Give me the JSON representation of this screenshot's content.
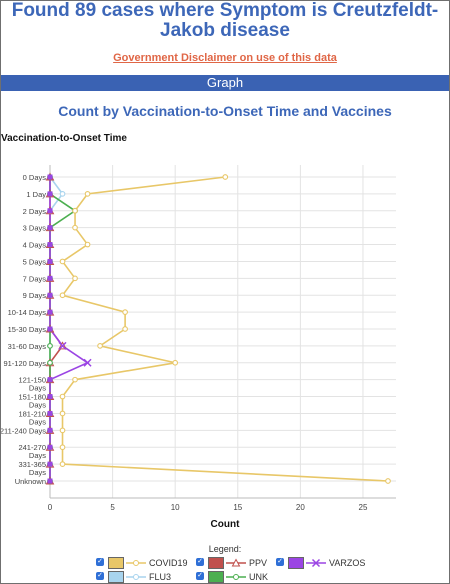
{
  "header": {
    "title_line1": "Found 89 cases where Symptom is Creutzfeldt-",
    "title_line2": "Jakob disease",
    "disclaimer_link": "Government Disclaimer on use of this data",
    "section_bar": "Graph"
  },
  "chart_data": {
    "type": "line",
    "title": "Count by Vaccination-to-Onset Time and Vaccines",
    "ylabel": "Vaccination-to-Onset Time",
    "xlabel": "Count",
    "xlim": [
      0,
      27
    ],
    "xticks": [
      "0",
      "5",
      "10",
      "15",
      "20",
      "25"
    ],
    "grid": true,
    "legend_title": "Legend:",
    "legend_position": "bottom",
    "categories": [
      [
        "0 Days"
      ],
      [
        "1 Day"
      ],
      [
        "2 Days"
      ],
      [
        "3 Days"
      ],
      [
        "4 Days"
      ],
      [
        "5 Days"
      ],
      [
        "7 Days"
      ],
      [
        "9 Days"
      ],
      [
        "10-14 Days"
      ],
      [
        "15-30 Days"
      ],
      [
        "31-60 Days"
      ],
      [
        "91-120 Days"
      ],
      [
        "121-150",
        "Days"
      ],
      [
        "151-180",
        "Days"
      ],
      [
        "181-210",
        "Days"
      ],
      [
        "211-240 Days"
      ],
      [
        "241-270",
        "Days"
      ],
      [
        "331-365",
        "Days"
      ],
      [
        "Unknown"
      ]
    ],
    "series": [
      {
        "name": "COVID19",
        "color": "#e8c768",
        "marker": "circle",
        "values": [
          14,
          3,
          2,
          2,
          3,
          1,
          2,
          1,
          6,
          6,
          4,
          10,
          2,
          1,
          1,
          1,
          1,
          1,
          27
        ]
      },
      {
        "name": "FLU3",
        "color": "#a8d4ee",
        "marker": "circle",
        "values": [
          0,
          1,
          0,
          0,
          0,
          0,
          0,
          0,
          0,
          0,
          0,
          0,
          0,
          0,
          0,
          0,
          0,
          0,
          0
        ]
      },
      {
        "name": "PPV",
        "color": "#c0504d",
        "marker": "triangle",
        "values": [
          0,
          0,
          0,
          0,
          0,
          0,
          0,
          0,
          0,
          0,
          1,
          0,
          0,
          0,
          0,
          0,
          0,
          0,
          0
        ]
      },
      {
        "name": "UNK",
        "color": "#4caf50",
        "marker": "circle",
        "values": [
          0,
          0,
          2,
          0,
          0,
          0,
          0,
          0,
          0,
          0,
          0,
          0,
          0,
          0,
          0,
          0,
          0,
          0,
          0
        ]
      },
      {
        "name": "VARZOS",
        "color": "#9b45e4",
        "marker": "x",
        "values": [
          0,
          0,
          0,
          0,
          0,
          0,
          0,
          0,
          0,
          0,
          1,
          3,
          0,
          0,
          0,
          0,
          0,
          0,
          0
        ]
      }
    ]
  }
}
